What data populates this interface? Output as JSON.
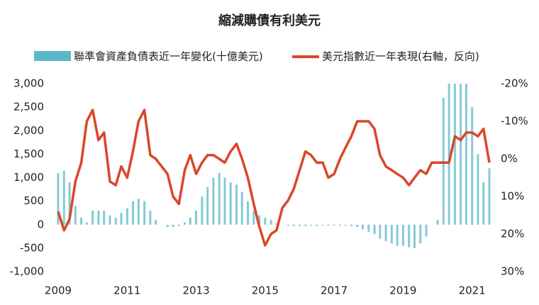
{
  "chart_data": {
    "type": "bar-line",
    "title": "縮減購債有利美元",
    "x": [
      2009,
      2009.17,
      2009.33,
      2009.5,
      2009.67,
      2009.83,
      2010,
      2010.17,
      2010.33,
      2010.5,
      2010.67,
      2010.83,
      2011,
      2011.17,
      2011.33,
      2011.5,
      2011.67,
      2011.83,
      2012,
      2012.17,
      2012.33,
      2012.5,
      2012.67,
      2012.83,
      2013,
      2013.17,
      2013.33,
      2013.5,
      2013.67,
      2013.83,
      2014,
      2014.17,
      2014.33,
      2014.5,
      2014.67,
      2014.83,
      2015,
      2015.17,
      2015.33,
      2015.5,
      2015.67,
      2015.83,
      2016,
      2016.17,
      2016.33,
      2016.5,
      2016.67,
      2016.83,
      2017,
      2017.17,
      2017.33,
      2017.5,
      2017.67,
      2017.83,
      2018,
      2018.17,
      2018.33,
      2018.5,
      2018.67,
      2018.83,
      2019,
      2019.17,
      2019.33,
      2019.5,
      2019.67,
      2019.83,
      2020,
      2020.17,
      2020.33,
      2020.5,
      2020.67,
      2020.83,
      2021,
      2021.17,
      2021.33,
      2021.5
    ],
    "series": [
      {
        "name": "聯準會資產負債表近一年變化(十億美元)",
        "type": "bar",
        "color": "#5bb8c8",
        "values": [
          1100,
          1150,
          900,
          400,
          150,
          50,
          300,
          300,
          300,
          200,
          150,
          250,
          350,
          500,
          550,
          500,
          300,
          100,
          0,
          -50,
          -50,
          -30,
          50,
          150,
          300,
          600,
          800,
          1000,
          1100,
          1000,
          900,
          850,
          700,
          500,
          300,
          200,
          150,
          100,
          30,
          0,
          -20,
          -30,
          -30,
          -30,
          -20,
          -30,
          -20,
          -20,
          -20,
          -20,
          -20,
          -30,
          -50,
          -100,
          -150,
          -200,
          -300,
          -350,
          -400,
          -450,
          -450,
          -480,
          -500,
          -400,
          -250,
          0,
          100,
          2700,
          3000,
          3000,
          3000,
          3000,
          2500,
          1500,
          900,
          1200
        ]
      },
      {
        "name": "美元指數近一年表現(右軸，反向)",
        "type": "line",
        "axis": "y2",
        "color": "#d9472a",
        "values": [
          14,
          19,
          16,
          6,
          1,
          -10,
          -13,
          -5,
          -7,
          6,
          7,
          2,
          5,
          -2,
          -10,
          -13,
          -1,
          0,
          2,
          4,
          10,
          12,
          3,
          -1,
          4,
          1,
          -1,
          -1,
          0,
          1,
          -2,
          -4,
          0,
          5,
          12,
          18,
          23,
          20,
          19,
          13,
          11,
          8,
          3,
          -2,
          -1,
          1,
          1,
          5,
          4,
          0,
          -3,
          -6,
          -10,
          -10,
          -10,
          -8,
          -1,
          2,
          3,
          4,
          5,
          7,
          5,
          3,
          4,
          1,
          1,
          1,
          1,
          -6,
          -5,
          -7,
          -7,
          -6,
          -8,
          1
        ]
      }
    ],
    "xlim": [
      2009,
      2021.5
    ],
    "xticks": [
      2009,
      2011,
      2013,
      2015,
      2017,
      2019,
      2021
    ],
    "ylim": [
      -1000,
      3000
    ],
    "yticks": [
      {
        "value": -1000,
        "label": "-1,000"
      },
      -500,
      0,
      500,
      {
        "value": 1000,
        "label": "1,000"
      },
      {
        "value": 1500,
        "label": "1,500"
      },
      {
        "value": 2000,
        "label": "2,000"
      },
      {
        "value": 2500,
        "label": "2,500"
      },
      {
        "value": 3000,
        "label": "3,000"
      }
    ],
    "y2lim": [
      -20,
      30
    ],
    "y2_inverted": true,
    "y2ticks": [
      {
        "value": -20,
        "label": "-20%"
      },
      {
        "value": -10,
        "label": "-10%"
      },
      {
        "value": 0,
        "label": "0%"
      },
      {
        "value": 10,
        "label": "10%"
      },
      {
        "value": 20,
        "label": "20%"
      },
      {
        "value": 30,
        "label": "30%"
      }
    ]
  }
}
